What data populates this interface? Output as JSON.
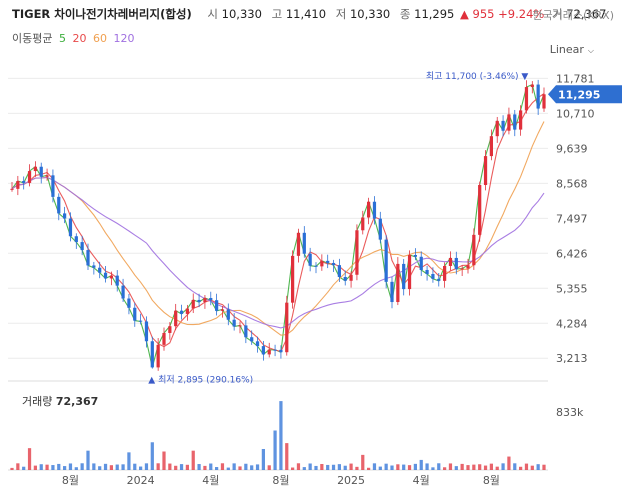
{
  "header": {
    "title": "TIGER 차이나전기차레버리지(합성)",
    "open_label": "시",
    "open": "10,330",
    "high_label": "고",
    "high": "11,410",
    "low_label": "저",
    "low": "10,330",
    "close_label": "종",
    "close": "11,295",
    "change": "▲ 955",
    "change_pct": "+9.24%",
    "volume_label": "거",
    "volume": "72,367"
  },
  "exchange": "한국거래소(KRX)",
  "moving_average": {
    "label": "이동평균",
    "periods": [
      {
        "value": "5",
        "color": "#3cae3c"
      },
      {
        "value": "20",
        "color": "#e84a4a"
      },
      {
        "value": "60",
        "color": "#f0a050"
      },
      {
        "value": "120",
        "color": "#a070e0"
      }
    ]
  },
  "scale_mode": "Linear",
  "colors": {
    "up": "#e0303b",
    "down": "#2a6fd6",
    "price_tag": "#2e6fd1",
    "grid": "#ececec"
  },
  "chart_data": {
    "type": "candlestick",
    "y_ticks": [
      "11,781",
      "10,710",
      "9,639",
      "8,568",
      "7,497",
      "6,426",
      "5,355",
      "4,284",
      "3,213"
    ],
    "y_tick_values": [
      11781,
      10710,
      9639,
      8568,
      7497,
      6426,
      5355,
      4284,
      3213
    ],
    "ylim": [
      2700,
      12100
    ],
    "x_ticks": [
      "8월",
      "2024",
      "4월",
      "8월",
      "2025",
      "4월",
      "8월"
    ],
    "x_tick_positions": [
      10,
      22,
      34,
      46,
      58,
      70,
      82
    ],
    "n_periods": 92,
    "last_price": "11,295",
    "last_price_value": 11295,
    "max_label": "최고 11,700 (-3.46%)",
    "max_value": 11700,
    "max_index": 89,
    "min_label": "최저 2,895 (290.16%)",
    "min_value": 2895,
    "min_index": 24,
    "close_anchors": [
      [
        0,
        8400
      ],
      [
        2,
        8700
      ],
      [
        4,
        9050
      ],
      [
        6,
        8700
      ],
      [
        8,
        7700
      ],
      [
        10,
        7050
      ],
      [
        12,
        6450
      ],
      [
        14,
        5900
      ],
      [
        16,
        5750
      ],
      [
        18,
        5500
      ],
      [
        20,
        4650
      ],
      [
        22,
        4300
      ],
      [
        24,
        3050
      ],
      [
        26,
        4000
      ],
      [
        28,
        4550
      ],
      [
        30,
        4750
      ],
      [
        32,
        5050
      ],
      [
        34,
        4950
      ],
      [
        36,
        4600
      ],
      [
        38,
        4250
      ],
      [
        40,
        3950
      ],
      [
        42,
        3500
      ],
      [
        44,
        3400
      ],
      [
        46,
        3500
      ],
      [
        47,
        4800
      ],
      [
        48,
        6400
      ],
      [
        49,
        7100
      ],
      [
        50,
        6300
      ],
      [
        52,
        6000
      ],
      [
        54,
        6250
      ],
      [
        56,
        5700
      ],
      [
        58,
        5650
      ],
      [
        59,
        7200
      ],
      [
        61,
        7900
      ],
      [
        62,
        7600
      ],
      [
        63,
        6800
      ],
      [
        64,
        5500
      ],
      [
        65,
        5050
      ],
      [
        66,
        6000
      ],
      [
        67,
        5350
      ],
      [
        68,
        6450
      ],
      [
        69,
        6200
      ],
      [
        71,
        5800
      ],
      [
        72,
        5550
      ],
      [
        73,
        5700
      ],
      [
        75,
        6250
      ],
      [
        77,
        5850
      ],
      [
        78,
        6100
      ],
      [
        79,
        7050
      ],
      [
        80,
        8400
      ],
      [
        81,
        9500
      ],
      [
        82,
        10000
      ],
      [
        83,
        10400
      ],
      [
        84,
        10300
      ],
      [
        85,
        10600
      ],
      [
        86,
        10200
      ],
      [
        87,
        10900
      ],
      [
        88,
        11400
      ],
      [
        89,
        11650
      ],
      [
        90,
        10900
      ],
      [
        91,
        11295
      ]
    ],
    "volume_label": "거래량",
    "volume_value": "72,367",
    "volume_tick": "833k",
    "volume_max": 833000,
    "volume_spike_anchors": [
      [
        3,
        260000
      ],
      [
        13,
        230000
      ],
      [
        20,
        210000
      ],
      [
        24,
        330000
      ],
      [
        26,
        220000
      ],
      [
        31,
        230000
      ],
      [
        43,
        250000
      ],
      [
        45,
        470000
      ],
      [
        46,
        820000
      ],
      [
        47,
        320000
      ],
      [
        60,
        180000
      ],
      [
        70,
        120000
      ],
      [
        85,
        160000
      ]
    ]
  }
}
